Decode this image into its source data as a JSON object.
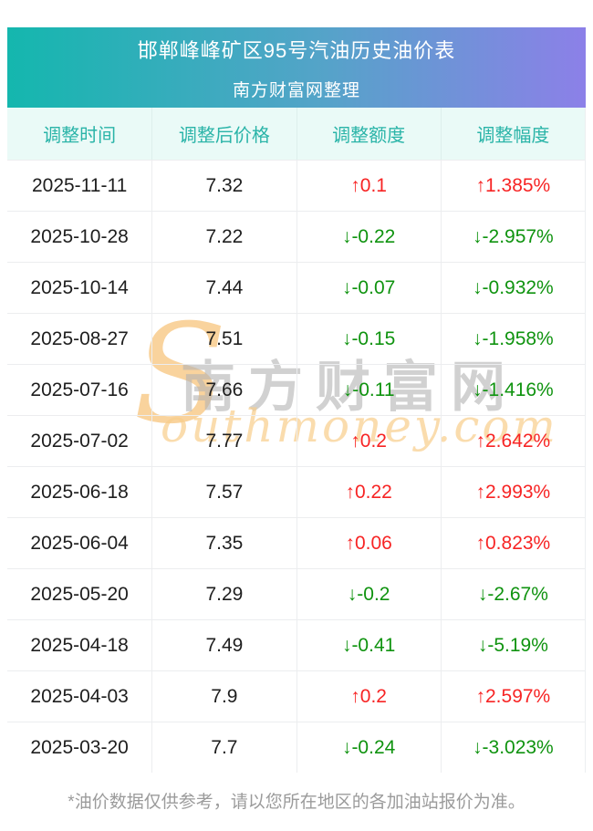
{
  "header": {
    "title": "邯郸峰峰矿区95号汽油历史油价表",
    "subtitle": "南方财富网整理"
  },
  "table": {
    "columns": [
      "调整时间",
      "调整后价格",
      "调整额度",
      "调整幅度"
    ],
    "rows": [
      {
        "date": "2025-11-11",
        "price": "7.32",
        "change": "↑0.1",
        "percent": "↑1.385%",
        "direction": "up"
      },
      {
        "date": "2025-10-28",
        "price": "7.22",
        "change": "↓-0.22",
        "percent": "↓-2.957%",
        "direction": "down"
      },
      {
        "date": "2025-10-14",
        "price": "7.44",
        "change": "↓-0.07",
        "percent": "↓-0.932%",
        "direction": "down"
      },
      {
        "date": "2025-08-27",
        "price": "7.51",
        "change": "↓-0.15",
        "percent": "↓-1.958%",
        "direction": "down"
      },
      {
        "date": "2025-07-16",
        "price": "7.66",
        "change": "↓-0.11",
        "percent": "↓-1.416%",
        "direction": "down"
      },
      {
        "date": "2025-07-02",
        "price": "7.77",
        "change": "↑0.2",
        "percent": "↑2.642%",
        "direction": "up"
      },
      {
        "date": "2025-06-18",
        "price": "7.57",
        "change": "↑0.22",
        "percent": "↑2.993%",
        "direction": "up"
      },
      {
        "date": "2025-06-04",
        "price": "7.35",
        "change": "↑0.06",
        "percent": "↑0.823%",
        "direction": "up"
      },
      {
        "date": "2025-05-20",
        "price": "7.29",
        "change": "↓-0.2",
        "percent": "↓-2.67%",
        "direction": "down"
      },
      {
        "date": "2025-04-18",
        "price": "7.49",
        "change": "↓-0.41",
        "percent": "↓-5.19%",
        "direction": "down"
      },
      {
        "date": "2025-04-03",
        "price": "7.9",
        "change": "↑0.2",
        "percent": "↑2.597%",
        "direction": "up"
      },
      {
        "date": "2025-03-20",
        "price": "7.7",
        "change": "↓-0.24",
        "percent": "↓-3.023%",
        "direction": "down"
      }
    ]
  },
  "watermark": {
    "s": "S",
    "chinese": "南方财富网",
    "english": "outhmoney.com"
  },
  "footer": {
    "disclaimer": "*油价数据仅供参考，请以您所在地区的各加油站报价为准。"
  },
  "colors": {
    "up_red": "#f72424",
    "down_green": "#0f930f",
    "banner_teal": "#14b7ae",
    "banner_purple": "#8c80e8",
    "header_text_teal": "#2ab4a8"
  }
}
